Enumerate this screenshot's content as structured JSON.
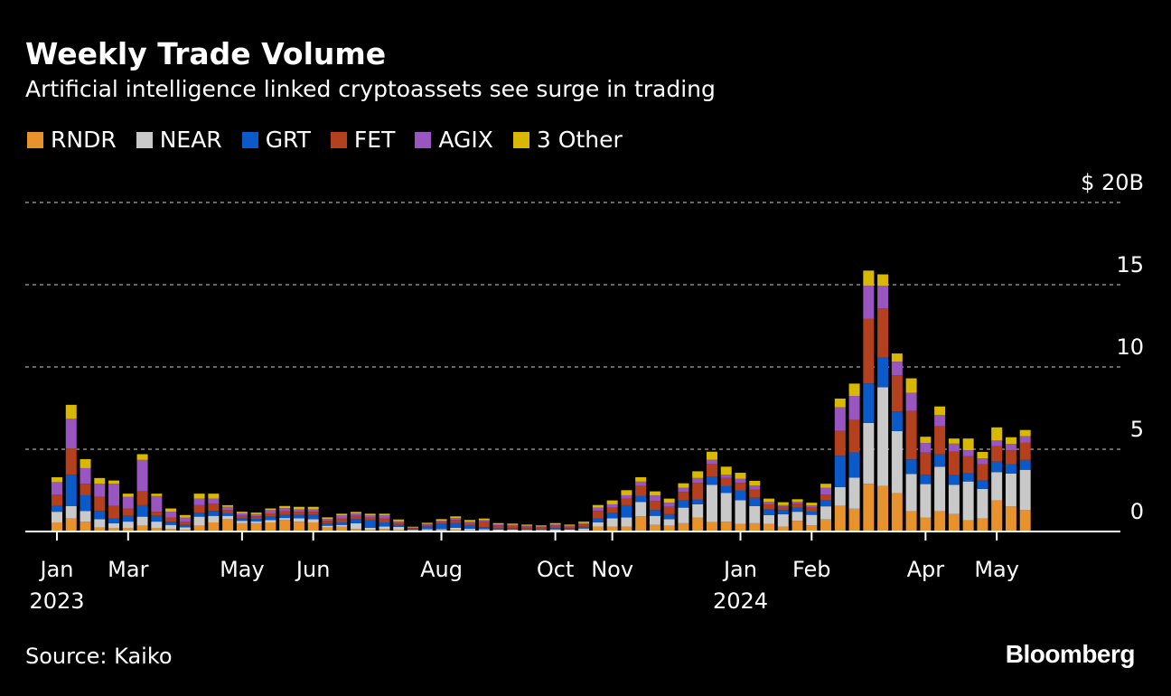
{
  "chart_data": {
    "type": "bar",
    "stacked": true,
    "title": "Weekly Trade Volume",
    "subtitle": "Artificial intelligence linked cryptoassets see surge in trading",
    "ylabel": "",
    "yunit_label": "$ 20B",
    "ylim": [
      0,
      20
    ],
    "y_ticks": [
      {
        "value": 20,
        "label": "$ 20B"
      },
      {
        "value": 15,
        "label": "15"
      },
      {
        "value": 10,
        "label": "10"
      },
      {
        "value": 5,
        "label": "5"
      },
      {
        "value": 0,
        "label": "0"
      }
    ],
    "grid": true,
    "legend_position": "top-left",
    "x_ticks": [
      {
        "label": "Jan",
        "year": "2023",
        "bar": 0
      },
      {
        "label": "Mar",
        "year": "",
        "bar": 5
      },
      {
        "label": "May",
        "year": "",
        "bar": 13
      },
      {
        "label": "Jun",
        "year": "",
        "bar": 18
      },
      {
        "label": "Aug",
        "year": "",
        "bar": 27
      },
      {
        "label": "Oct",
        "year": "",
        "bar": 35
      },
      {
        "label": "Nov",
        "year": "",
        "bar": 39
      },
      {
        "label": "Jan",
        "year": "2024",
        "bar": 48
      },
      {
        "label": "Feb",
        "year": "",
        "bar": 53
      },
      {
        "label": "Apr",
        "year": "",
        "bar": 61
      },
      {
        "label": "May",
        "year": "",
        "bar": 66
      }
    ],
    "series": [
      {
        "name": "RNDR",
        "color": "#e8922e"
      },
      {
        "name": "NEAR",
        "color": "#c9c9c9"
      },
      {
        "name": "GRT",
        "color": "#0b5ac9"
      },
      {
        "name": "FET",
        "color": "#b4401e"
      },
      {
        "name": "AGIX",
        "color": "#9955c0"
      },
      {
        "name": "3 Other",
        "color": "#d8b800"
      }
    ],
    "weekly_values_by_series_order": [
      [
        0.55,
        0.65,
        0.35,
        0.7,
        0.75,
        0.3
      ],
      [
        0.8,
        0.75,
        1.9,
        1.6,
        1.8,
        0.85
      ],
      [
        0.6,
        0.65,
        0.95,
        0.7,
        0.95,
        0.55
      ],
      [
        0.25,
        0.5,
        0.5,
        0.85,
        0.8,
        0.35
      ],
      [
        0.2,
        0.3,
        0.3,
        0.75,
        1.35,
        0.2
      ],
      [
        0.2,
        0.4,
        0.35,
        0.45,
        0.7,
        0.2
      ],
      [
        0.35,
        0.55,
        0.7,
        0.85,
        1.9,
        0.35
      ],
      [
        0.2,
        0.4,
        0.35,
        0.25,
        0.95,
        0.15
      ],
      [
        0.15,
        0.25,
        0.2,
        0.25,
        0.35,
        0.2
      ],
      [
        0.1,
        0.15,
        0.15,
        0.2,
        0.25,
        0.15
      ],
      [
        0.35,
        0.55,
        0.25,
        0.45,
        0.4,
        0.3
      ],
      [
        0.55,
        0.4,
        0.3,
        0.45,
        0.3,
        0.3
      ],
      [
        0.75,
        0.2,
        0.15,
        0.2,
        0.2,
        0.1
      ],
      [
        0.5,
        0.15,
        0.15,
        0.15,
        0.15,
        0.1
      ],
      [
        0.5,
        0.12,
        0.15,
        0.15,
        0.13,
        0.1
      ],
      [
        0.55,
        0.15,
        0.2,
        0.2,
        0.2,
        0.1
      ],
      [
        0.7,
        0.12,
        0.2,
        0.2,
        0.2,
        0.13
      ],
      [
        0.6,
        0.2,
        0.2,
        0.2,
        0.15,
        0.15
      ],
      [
        0.55,
        0.2,
        0.25,
        0.2,
        0.15,
        0.15
      ],
      [
        0.25,
        0.1,
        0.15,
        0.15,
        0.11,
        0.1
      ],
      [
        0.3,
        0.1,
        0.15,
        0.25,
        0.18,
        0.1
      ],
      [
        0.15,
        0.35,
        0.25,
        0.2,
        0.14,
        0.1
      ],
      [
        0.1,
        0.12,
        0.45,
        0.18,
        0.13,
        0.1
      ],
      [
        0.15,
        0.15,
        0.25,
        0.25,
        0.18,
        0.1
      ],
      [
        0.1,
        0.18,
        0.12,
        0.13,
        0.1,
        0.1
      ],
      [
        0.04,
        0.06,
        0.05,
        0.06,
        0.04,
        0.04
      ],
      [
        0.06,
        0.08,
        0.16,
        0.1,
        0.06,
        0.07
      ],
      [
        0.07,
        0.08,
        0.3,
        0.12,
        0.08,
        0.1
      ],
      [
        0.1,
        0.12,
        0.3,
        0.18,
        0.12,
        0.1
      ],
      [
        0.07,
        0.1,
        0.18,
        0.15,
        0.1,
        0.1
      ],
      [
        0.06,
        0.08,
        0.12,
        0.35,
        0.08,
        0.1
      ],
      [
        0.05,
        0.06,
        0.08,
        0.18,
        0.07,
        0.07
      ],
      [
        0.05,
        0.06,
        0.07,
        0.16,
        0.07,
        0.07
      ],
      [
        0.05,
        0.05,
        0.07,
        0.12,
        0.06,
        0.07
      ],
      [
        0.05,
        0.05,
        0.06,
        0.1,
        0.05,
        0.06
      ],
      [
        0.05,
        0.08,
        0.08,
        0.15,
        0.07,
        0.08
      ],
      [
        0.05,
        0.06,
        0.07,
        0.12,
        0.06,
        0.06
      ],
      [
        0.08,
        0.1,
        0.1,
        0.15,
        0.08,
        0.09
      ],
      [
        0.3,
        0.25,
        0.25,
        0.45,
        0.2,
        0.16
      ],
      [
        0.3,
        0.5,
        0.35,
        0.3,
        0.2,
        0.24
      ],
      [
        0.3,
        0.55,
        0.75,
        0.4,
        0.2,
        0.31
      ],
      [
        0.92,
        0.88,
        0.37,
        0.59,
        0.27,
        0.27
      ],
      [
        0.4,
        0.55,
        0.35,
        0.55,
        0.34,
        0.25
      ],
      [
        0.35,
        0.4,
        0.3,
        0.45,
        0.25,
        0.25
      ],
      [
        0.5,
        0.95,
        0.45,
        0.5,
        0.25,
        0.28
      ],
      [
        0.85,
        0.8,
        0.3,
        1.0,
        0.3,
        0.41
      ],
      [
        0.57,
        2.27,
        0.51,
        0.77,
        0.24,
        0.49
      ],
      [
        0.6,
        1.75,
        0.4,
        0.5,
        0.2,
        0.49
      ],
      [
        0.45,
        1.45,
        0.6,
        0.45,
        0.25,
        0.37
      ],
      [
        0.5,
        1.05,
        0.5,
        0.5,
        0.25,
        0.28
      ],
      [
        0.45,
        0.55,
        0.35,
        0.3,
        0.15,
        0.2
      ],
      [
        0.3,
        0.75,
        0.25,
        0.2,
        0.1,
        0.18
      ],
      [
        0.65,
        0.55,
        0.25,
        0.25,
        0.1,
        0.16
      ],
      [
        0.37,
        0.64,
        0.2,
        0.25,
        0.12,
        0.17
      ],
      [
        0.73,
        0.8,
        0.37,
        0.35,
        0.4,
        0.25
      ],
      [
        1.57,
        1.13,
        1.9,
        1.52,
        1.43,
        0.53
      ],
      [
        1.38,
        1.89,
        1.54,
        1.98,
        1.45,
        0.75
      ],
      [
        2.9,
        3.7,
        2.4,
        3.94,
        2.0,
        0.92
      ],
      [
        2.77,
        6.0,
        1.8,
        3.0,
        1.36,
        0.7
      ],
      [
        2.33,
        3.77,
        1.2,
        2.2,
        0.82,
        0.5
      ],
      [
        1.23,
        2.27,
        0.88,
        2.95,
        1.1,
        0.88
      ],
      [
        0.85,
        2.03,
        0.57,
        1.34,
        0.59,
        0.38
      ],
      [
        1.23,
        2.71,
        0.75,
        1.7,
        0.7,
        0.51
      ],
      [
        1.06,
        1.78,
        0.59,
        1.43,
        0.48,
        0.31
      ],
      [
        0.68,
        2.36,
        0.49,
        1.04,
        0.37,
        0.71
      ],
      [
        0.79,
        1.8,
        0.51,
        0.99,
        0.35,
        0.4
      ],
      [
        1.89,
        1.72,
        0.64,
        0.93,
        0.35,
        0.8
      ],
      [
        1.52,
        2.0,
        0.57,
        0.84,
        0.4,
        0.4
      ],
      [
        1.3,
        2.45,
        0.6,
        1.04,
        0.4,
        0.38
      ]
    ]
  },
  "source": "Source: Kaiko",
  "brand": "Bloomberg"
}
